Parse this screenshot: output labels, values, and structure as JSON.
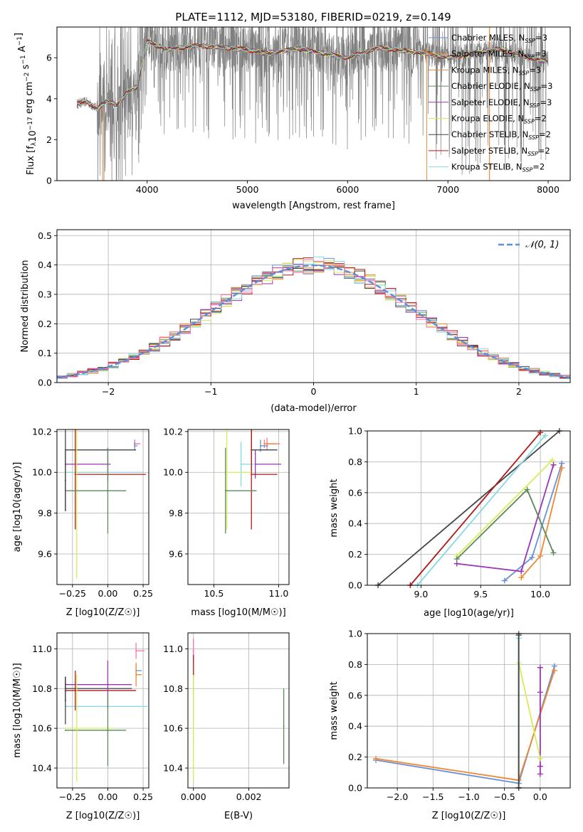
{
  "figure": {
    "title": "PLATE=1112, MJD=53180, FIBERID=0219, z=0.149"
  },
  "chart_data": [
    {
      "id": "spectrum",
      "type": "line",
      "xlabel": "wavelength [Angstrom, rest frame]",
      "ylabel_parts": [
        "Flux [f",
        "λ",
        "10",
        "−17",
        " erg cm",
        "−2",
        " s",
        "−1",
        " A",
        "−1",
        "]"
      ],
      "xlim": [
        3100,
        8220
      ],
      "ylim": [
        0,
        7.5
      ],
      "xticks": [
        4000,
        5000,
        6000,
        7000,
        8000
      ],
      "yticks": [
        0,
        2,
        4,
        6
      ],
      "data_color": "#808080",
      "legend_position": "top-right",
      "legend": [
        {
          "name": "Chabrier MILES",
          "nssp": "3",
          "color": "#6b8fd6"
        },
        {
          "name": "Salpeter MILES",
          "nssp": "3",
          "color": "#ee8a33"
        },
        {
          "name": "Kroupa MILES",
          "nssp": "3",
          "color": "#ee8a33"
        },
        {
          "name": "Chabrier ELODIE",
          "nssp": "3",
          "color": "#5a8a5a"
        },
        {
          "name": "Salpeter ELODIE",
          "nssp": "3",
          "color": "#9a35b5"
        },
        {
          "name": "Kroupa ELODIE",
          "nssp": "2",
          "color": "#d6ee55"
        },
        {
          "name": "Chabrier STELIB",
          "nssp": "2",
          "color": "#444444"
        },
        {
          "name": "Salpeter STELIB",
          "nssp": "2",
          "color": "#b01818"
        },
        {
          "name": "Kroupa STELIB",
          "nssp": "2",
          "color": "#88d8e4"
        }
      ],
      "continuum_points": [
        [
          3300,
          3.75
        ],
        [
          3400,
          3.85
        ],
        [
          3500,
          3.5
        ],
        [
          3600,
          3.9
        ],
        [
          3700,
          3.7
        ],
        [
          3800,
          4.3
        ],
        [
          3900,
          4.6
        ],
        [
          4000,
          6.8
        ],
        [
          4200,
          6.4
        ],
        [
          4500,
          6.6
        ],
        [
          5000,
          6.4
        ],
        [
          5200,
          6.2
        ],
        [
          5500,
          6.45
        ],
        [
          6000,
          6.0
        ],
        [
          6300,
          6.5
        ],
        [
          6800,
          6.2
        ],
        [
          7000,
          6.0
        ],
        [
          7500,
          6.4
        ],
        [
          8000,
          5.8
        ]
      ]
    },
    {
      "id": "residuals",
      "type": "histogram",
      "xlabel": "(data-model)/error",
      "ylabel": "Normed distribution",
      "xlim": [
        -2.5,
        2.5
      ],
      "ylim": [
        0,
        0.52
      ],
      "xticks": [
        -2,
        -1,
        0,
        1,
        2
      ],
      "xtick_labels": [
        "−2",
        "−1",
        "0",
        "1",
        "2"
      ],
      "yticks": [
        0,
        0.1,
        0.2,
        0.3,
        0.4,
        0.5
      ],
      "grid": true,
      "legend": [
        {
          "name": "𝒩(0, 1)",
          "color": "#5b8fd9"
        }
      ],
      "legend_position": "top-right",
      "gaussian": {
        "mean": 0,
        "sigma": 1
      },
      "bin_width": 0.1,
      "bin_start": -2.5
    },
    {
      "id": "age_vs_Z",
      "type": "errorbar",
      "xlabel": "Z [log10(Z/Z☉)]",
      "ylabel": "age  [log10(age/yr)]",
      "xlim": [
        -0.36,
        0.29
      ],
      "ylim": [
        9.45,
        10.21
      ],
      "xticks": [
        -0.25,
        0,
        0.25
      ],
      "xtick_labels": [
        "−0.25",
        "0.00",
        "0.25"
      ],
      "yticks": [
        9.6,
        9.8,
        10.0,
        10.2
      ],
      "grid": true,
      "points": [
        {
          "x": 0.19,
          "y": 10.14,
          "xerr": 0.03,
          "yerr": 0.02,
          "color": "#ee8a33"
        },
        {
          "x": 0.19,
          "y": 10.14,
          "xerr": 0.04,
          "yerr": 0.02,
          "color": "#ff6fa8"
        },
        {
          "x": 0.19,
          "y": 10.13,
          "xerr": 0.02,
          "yerr": 0.02,
          "color": "#6b8fd6"
        },
        {
          "x": -0.3,
          "y": 10.11,
          "xerr": 0.5,
          "yerr": 0.3,
          "color": "#444444"
        },
        {
          "x": -0.3,
          "y": 10.04,
          "xerr": 0.32,
          "yerr": 0.0,
          "color": "#9a35b5"
        },
        {
          "x": 0.0,
          "y": 10.04,
          "xerr": 0.0,
          "yerr": 0.08,
          "color": "#9a35b5"
        },
        {
          "x": -0.3,
          "y": 10.0,
          "xerr": 0.26,
          "yerr": 0.0,
          "color": "#d6ee55"
        },
        {
          "x": -0.3,
          "y": 10.0,
          "xerr": 0.55,
          "yerr": 0.0,
          "color": "#88d8e4"
        },
        {
          "x": -0.23,
          "y": 9.99,
          "xerr": 0.5,
          "yerr": 0.27,
          "color": "#b01818"
        },
        {
          "x": -0.22,
          "y": 10.0,
          "xerr": 0.0,
          "yerr": 0.52,
          "color": "#d6ee55"
        },
        {
          "x": 0.0,
          "y": 9.91,
          "xerr": 0.0,
          "yerr": 0.21,
          "color": "#5a8a5a"
        },
        {
          "x": -0.3,
          "y": 9.91,
          "xerr": 0.43,
          "yerr": 0.0,
          "color": "#5a8a5a"
        },
        {
          "x": -0.3,
          "y": 9.96,
          "xerr": 0.0,
          "yerr": 0.15,
          "color": "#444444"
        }
      ]
    },
    {
      "id": "age_vs_mass",
      "type": "errorbar",
      "xlabel": "mass [log10(M/M☉)]",
      "ylabel": "",
      "xlim": [
        10.3,
        11.08
      ],
      "ylim": [
        9.45,
        10.21
      ],
      "xticks": [
        10.5,
        11.0
      ],
      "xtick_labels": [
        "10.5",
        "11.0"
      ],
      "yticks": [
        9.6,
        9.8,
        10.0,
        10.2
      ],
      "grid": true,
      "points": [
        {
          "x": 10.91,
          "y": 10.14,
          "xerr": 0.1,
          "yerr": 0.03,
          "color": "#ff6fa8"
        },
        {
          "x": 10.89,
          "y": 10.14,
          "xerr": 0.1,
          "yerr": 0.02,
          "color": "#ee8a33"
        },
        {
          "x": 10.86,
          "y": 10.13,
          "xerr": 0.06,
          "yerr": 0.03,
          "color": "#6b8fd6"
        },
        {
          "x": 10.79,
          "y": 10.11,
          "xerr": 0.2,
          "yerr": 0.1,
          "color": "#444444"
        },
        {
          "x": 10.82,
          "y": 10.04,
          "xerr": 0.2,
          "yerr": 0.07,
          "color": "#9a35b5"
        },
        {
          "x": 10.71,
          "y": 10.04,
          "xerr": 0.1,
          "yerr": 0.11,
          "color": "#88d8e4"
        },
        {
          "x": 10.6,
          "y": 10.0,
          "xerr": 0.2,
          "yerr": 0.28,
          "color": "#d6ee55"
        },
        {
          "x": 10.79,
          "y": 9.99,
          "xerr": 0.2,
          "yerr": 0.27,
          "color": "#b01818"
        },
        {
          "x": 10.59,
          "y": 9.91,
          "xerr": 0.24,
          "yerr": 0.21,
          "color": "#5a8a5a"
        }
      ]
    },
    {
      "id": "weight_vs_age",
      "type": "line",
      "xlabel": "age  [log10(age/yr)]",
      "ylabel": "mass weight",
      "xlim": [
        8.55,
        10.25
      ],
      "ylim": [
        0,
        1
      ],
      "xticks": [
        9.0,
        9.5,
        10.0
      ],
      "xtick_labels": [
        "9.0",
        "9.5",
        "10.0"
      ],
      "yticks": [
        0,
        0.2,
        0.4,
        0.6,
        0.8,
        1.0
      ],
      "grid": true,
      "series": [
        {
          "color": "#444444",
          "x": [
            8.64,
            10.16
          ],
          "y": [
            0.0,
            1.0
          ]
        },
        {
          "color": "#b01818",
          "x": [
            8.91,
            10.0
          ],
          "y": [
            0.0,
            0.99
          ]
        },
        {
          "color": "#88d8e4",
          "x": [
            8.97,
            10.04
          ],
          "y": [
            0.0,
            0.97
          ]
        },
        {
          "color": "#6b8fd6",
          "x": [
            9.7,
            9.93,
            10.18
          ],
          "y": [
            0.03,
            0.18,
            0.79
          ]
        },
        {
          "color": "#ee8a33",
          "x": [
            9.84,
            10.0,
            10.18
          ],
          "y": [
            0.05,
            0.19,
            0.76
          ]
        },
        {
          "color": "#9a35b5",
          "x": [
            9.3,
            9.84,
            10.11
          ],
          "y": [
            0.14,
            0.09,
            0.78
          ]
        },
        {
          "color": "#d6ee55",
          "x": [
            9.3,
            10.1
          ],
          "y": [
            0.19,
            0.81
          ]
        },
        {
          "color": "#5a8a5a",
          "x": [
            9.3,
            9.89,
            10.11
          ],
          "y": [
            0.17,
            0.62,
            0.21
          ]
        }
      ]
    },
    {
      "id": "mass_vs_Z",
      "type": "errorbar",
      "xlabel": "Z [log10(Z/Z☉)]",
      "ylabel": "mass [log10(M/M☉)]",
      "xlim": [
        -0.36,
        0.29
      ],
      "ylim": [
        10.3,
        11.08
      ],
      "xticks": [
        -0.25,
        0,
        0.25
      ],
      "xtick_labels": [
        "−0.25",
        "0.00",
        "0.25"
      ],
      "yticks": [
        10.4,
        10.6,
        10.8,
        11.0
      ],
      "grid": true,
      "points": [
        {
          "x": 0.2,
          "y": 10.99,
          "xerr": 0.06,
          "yerr": 0.04,
          "color": "#ff6fa8"
        },
        {
          "x": 0.2,
          "y": 10.89,
          "xerr": 0.04,
          "yerr": 0.03,
          "color": "#6b8fd6"
        },
        {
          "x": 0.2,
          "y": 10.87,
          "xerr": 0.04,
          "yerr": 0.06,
          "color": "#ee8a33"
        },
        {
          "x": -0.3,
          "y": 10.82,
          "xerr": 0.47,
          "yerr": 0.04,
          "color": "#9a35b5"
        },
        {
          "x": -0.3,
          "y": 10.8,
          "xerr": 0.47,
          "yerr": 0.06,
          "color": "#444444"
        },
        {
          "x": -0.3,
          "y": 10.79,
          "xerr": 0.5,
          "yerr": 0.0,
          "color": "#b01818"
        },
        {
          "x": -0.3,
          "y": 10.71,
          "xerr": 0.58,
          "yerr": 0.0,
          "color": "#88d8e4"
        },
        {
          "x": -0.3,
          "y": 10.6,
          "xerr": 0.35,
          "yerr": 0.0,
          "color": "#d6ee55"
        },
        {
          "x": -0.3,
          "y": 10.59,
          "xerr": 0.43,
          "yerr": 0.0,
          "color": "#5a8a5a"
        },
        {
          "x": -0.23,
          "y": 10.79,
          "xerr": 0.0,
          "yerr": 0.1,
          "color": "#b01818"
        },
        {
          "x": -0.3,
          "y": 10.74,
          "xerr": 0.0,
          "yerr": 0.12,
          "color": "#444444"
        },
        {
          "x": 0.0,
          "y": 10.82,
          "xerr": 0.0,
          "yerr": 0.12,
          "color": "#9a35b5"
        },
        {
          "x": 0.0,
          "y": 10.59,
          "xerr": 0.0,
          "yerr": 0.18,
          "color": "#5a8a5a"
        },
        {
          "x": -0.22,
          "y": 10.6,
          "xerr": 0.0,
          "yerr": 0.27,
          "color": "#d6ee55"
        }
      ]
    },
    {
      "id": "mass_vs_ebv",
      "type": "errorbar",
      "xlabel": "E(B-V)",
      "ylabel": "",
      "xlim": [
        -0.0002,
        0.00345
      ],
      "ylim": [
        10.3,
        11.08
      ],
      "xticks": [
        0,
        0.002
      ],
      "xtick_labels": [
        "0.000",
        "0.002"
      ],
      "yticks": [
        10.4,
        10.6,
        10.8,
        11.0
      ],
      "grid": true,
      "points": [
        {
          "x": 0.0,
          "y": 10.99,
          "xerr": 0,
          "yerr": 0.06,
          "color": "#ff6fa8"
        },
        {
          "x": 0.0,
          "y": 10.87,
          "xerr": 0,
          "yerr": 0.1,
          "color": "#b01818"
        },
        {
          "x": 0.0,
          "y": 10.71,
          "xerr": 0,
          "yerr": 0.15,
          "color": "#88d8e4"
        },
        {
          "x": 0.0,
          "y": 10.6,
          "xerr": 0,
          "yerr": 0.27,
          "color": "#d6ee55"
        },
        {
          "x": 0.00326,
          "y": 10.61,
          "xerr": 0,
          "yerr": 0.19,
          "color": "#5a8a5a"
        }
      ]
    },
    {
      "id": "weight_vs_Z",
      "type": "line",
      "xlabel": "Z [log10(Z/Z☉)]",
      "ylabel": "mass weight",
      "xlim": [
        -2.42,
        0.42
      ],
      "ylim": [
        0,
        1
      ],
      "xticks": [
        -2.0,
        -1.5,
        -1.0,
        -0.5,
        0.0
      ],
      "xtick_labels": [
        "−2.0",
        "−1.5",
        "−1.0",
        "−0.5",
        "0.0"
      ],
      "yticks": [
        0,
        0.2,
        0.4,
        0.6,
        0.8,
        1.0
      ],
      "grid": true,
      "series": [
        {
          "color": "#6b8fd6",
          "x": [
            -2.3,
            -0.3,
            0.2
          ],
          "y": [
            0.18,
            0.03,
            0.79
          ]
        },
        {
          "color": "#ee8a33",
          "x": [
            -2.3,
            -0.3,
            0.2
          ],
          "y": [
            0.19,
            0.05,
            0.76
          ]
        },
        {
          "color": "#9a35b5",
          "x": [
            0.0,
            0.0,
            0.0,
            0.0
          ],
          "y": [
            0.09,
            0.14,
            0.62,
            0.78
          ]
        },
        {
          "color": "#d6ee55",
          "x": [
            -0.3,
            0.0
          ],
          "y": [
            0.81,
            0.19
          ]
        },
        {
          "color": "#5a8a5a",
          "x": [
            -0.3,
            -0.3
          ],
          "y": [
            0.0,
            1.0
          ]
        },
        {
          "color": "#88d8e4",
          "x": [
            -0.3,
            -0.3
          ],
          "y": [
            0.0,
            0.97
          ]
        },
        {
          "color": "#444444",
          "x": [
            -0.3,
            -0.3
          ],
          "y": [
            0.0,
            0.99
          ]
        }
      ]
    }
  ]
}
